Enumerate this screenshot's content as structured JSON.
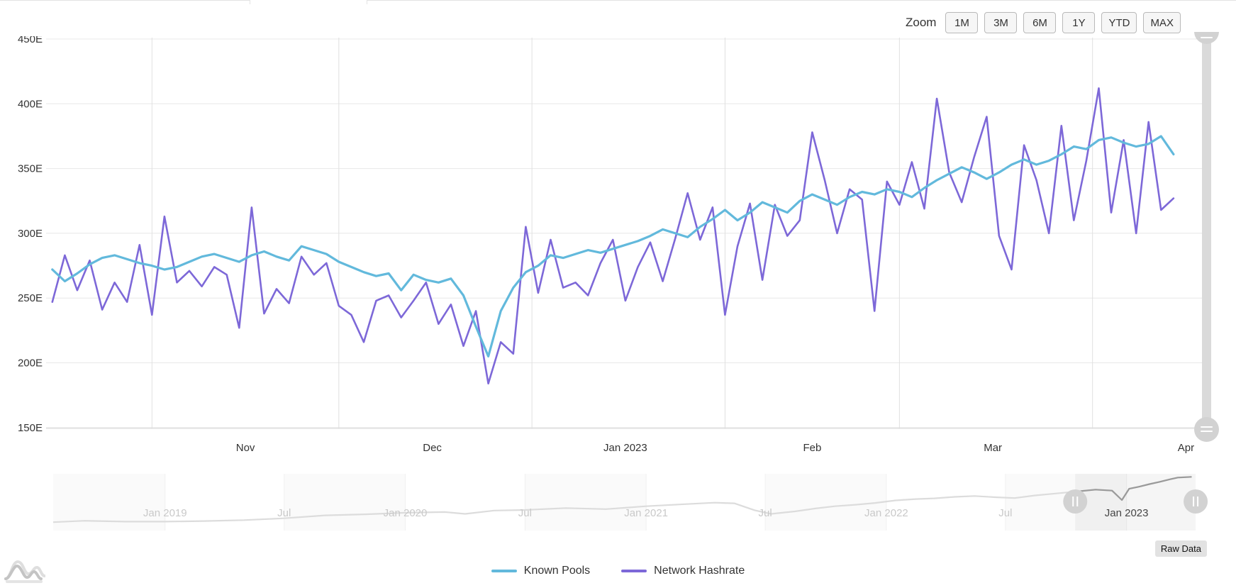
{
  "zoom_bar": {
    "label": "Zoom",
    "buttons": [
      "1M",
      "3M",
      "6M",
      "1Y",
      "YTD",
      "MAX"
    ]
  },
  "raw_data_button": {
    "label": "Raw Data"
  },
  "legend": {
    "items": [
      {
        "label": "Known Pools",
        "color": "#62b9dc"
      },
      {
        "label": "Network Hashrate",
        "color": "#7d68d8"
      }
    ]
  },
  "colors": {
    "known_pools": "#62b9dc",
    "network_hashrate": "#7d68d8",
    "grid_h": "#e8e8e8",
    "grid_v": "#e0e0e0",
    "axis_line": "#d4d4d4",
    "nav_line_dim": "#dcdcdc",
    "nav_line_active": "#9a9a9a",
    "nav_label_dim": "#c9c9c9",
    "nav_label_active": "#454545",
    "nav_band": "#fafafa",
    "nav_separator": "#f0f0f0",
    "nav_selection_fill": "rgba(120,120,120,0.07)",
    "control_gray": "#d2d2d2"
  },
  "chart_data": {
    "type": "line",
    "title": "",
    "xlabel": "",
    "ylabel": "",
    "ylim": [
      150,
      450
    ],
    "grid": true,
    "legend_position": "bottom",
    "y_axis": {
      "ticks": [
        {
          "value": 450,
          "label": "450E"
        },
        {
          "value": 400,
          "label": "400E"
        },
        {
          "value": 350,
          "label": "350E"
        },
        {
          "value": 300,
          "label": "300E"
        },
        {
          "value": 250,
          "label": "250E"
        },
        {
          "value": 200,
          "label": "200E"
        },
        {
          "value": 150,
          "label": "150E"
        }
      ]
    },
    "x_axis": {
      "ticks": [
        {
          "line_date": "2022-11-01",
          "label": "Nov",
          "label_date": "2022-11-16"
        },
        {
          "line_date": "2022-12-01",
          "label": "Dec",
          "label_date": "2022-12-16"
        },
        {
          "line_date": "2023-01-01",
          "label": "Jan 2023",
          "label_date": "2023-01-16"
        },
        {
          "line_date": "2023-02-01",
          "label": "Feb",
          "label_date": "2023-02-15"
        },
        {
          "line_date": "2023-03-01",
          "label": "Mar",
          "label_date": "2023-03-16"
        },
        {
          "line_date": "2023-04-01",
          "label": "Apr",
          "label_date": "2023-04-16"
        }
      ]
    },
    "x": [
      "2022-10-16",
      "2022-10-18",
      "2022-10-20",
      "2022-10-22",
      "2022-10-24",
      "2022-10-26",
      "2022-10-28",
      "2022-10-30",
      "2022-11-01",
      "2022-11-03",
      "2022-11-05",
      "2022-11-07",
      "2022-11-09",
      "2022-11-11",
      "2022-11-13",
      "2022-11-15",
      "2022-11-17",
      "2022-11-19",
      "2022-11-21",
      "2022-11-23",
      "2022-11-25",
      "2022-11-27",
      "2022-11-29",
      "2022-12-01",
      "2022-12-03",
      "2022-12-05",
      "2022-12-07",
      "2022-12-09",
      "2022-12-11",
      "2022-12-13",
      "2022-12-15",
      "2022-12-17",
      "2022-12-19",
      "2022-12-21",
      "2022-12-23",
      "2022-12-25",
      "2022-12-27",
      "2022-12-29",
      "2022-12-31",
      "2023-01-02",
      "2023-01-04",
      "2023-01-06",
      "2023-01-08",
      "2023-01-10",
      "2023-01-12",
      "2023-01-14",
      "2023-01-16",
      "2023-01-18",
      "2023-01-20",
      "2023-01-22",
      "2023-01-24",
      "2023-01-26",
      "2023-01-28",
      "2023-01-30",
      "2023-02-01",
      "2023-02-03",
      "2023-02-05",
      "2023-02-07",
      "2023-02-09",
      "2023-02-11",
      "2023-02-13",
      "2023-02-15",
      "2023-02-17",
      "2023-02-19",
      "2023-02-21",
      "2023-02-23",
      "2023-02-25",
      "2023-02-27",
      "2023-03-01",
      "2023-03-03",
      "2023-03-05",
      "2023-03-07",
      "2023-03-09",
      "2023-03-11",
      "2023-03-13",
      "2023-03-15",
      "2023-03-17",
      "2023-03-19",
      "2023-03-21",
      "2023-03-23",
      "2023-03-25",
      "2023-03-27",
      "2023-03-29",
      "2023-03-31",
      "2023-04-02",
      "2023-04-04",
      "2023-04-06",
      "2023-04-08",
      "2023-04-10",
      "2023-04-12",
      "2023-04-14"
    ],
    "series": [
      {
        "name": "Known Pools",
        "unit": "EH/s",
        "values": [
          272,
          263,
          269,
          276,
          281,
          283,
          280,
          277,
          275,
          272,
          274,
          278,
          282,
          284,
          281,
          278,
          283,
          286,
          282,
          279,
          290,
          287,
          284,
          278,
          274,
          270,
          267,
          269,
          256,
          268,
          264,
          262,
          265,
          252,
          228,
          205,
          240,
          258,
          270,
          275,
          283,
          281,
          284,
          287,
          285,
          288,
          291,
          294,
          298,
          303,
          300,
          297,
          305,
          311,
          318,
          310,
          316,
          324,
          320,
          316,
          325,
          330,
          326,
          322,
          328,
          332,
          330,
          334,
          332,
          328,
          335,
          341,
          346,
          351,
          347,
          342,
          347,
          353,
          357,
          353,
          356,
          361,
          367,
          365,
          372,
          374,
          370,
          367,
          369,
          375,
          361
        ]
      },
      {
        "name": "Network Hashrate",
        "unit": "EH/s",
        "values": [
          247,
          283,
          256,
          279,
          241,
          262,
          247,
          291,
          237,
          313,
          262,
          271,
          259,
          274,
          268,
          227,
          320,
          238,
          257,
          246,
          282,
          268,
          277,
          244,
          237,
          216,
          248,
          252,
          235,
          248,
          262,
          230,
          245,
          213,
          240,
          184,
          216,
          207,
          305,
          254,
          295,
          258,
          262,
          252,
          277,
          295,
          248,
          274,
          293,
          263,
          296,
          331,
          295,
          320,
          237,
          290,
          323,
          264,
          322,
          298,
          310,
          378,
          341,
          300,
          334,
          326,
          240,
          340,
          322,
          355,
          319,
          404,
          347,
          324,
          359,
          390,
          298,
          272,
          368,
          341,
          300,
          383,
          310,
          356,
          412,
          316,
          372,
          300,
          386,
          318,
          327
        ]
      }
    ]
  },
  "navigator": {
    "range": {
      "start": "2022-10-15",
      "end": "2023-04-16"
    },
    "ticks": [
      {
        "date": "2019-01-01",
        "label": "Jan 2019",
        "active": false
      },
      {
        "date": "2019-07-01",
        "label": "Jul",
        "active": false
      },
      {
        "date": "2020-01-01",
        "label": "Jan 2020",
        "active": false
      },
      {
        "date": "2020-07-01",
        "label": "Jul",
        "active": false
      },
      {
        "date": "2021-01-01",
        "label": "Jan 2021",
        "active": false
      },
      {
        "date": "2021-07-01",
        "label": "Jul",
        "active": false
      },
      {
        "date": "2022-01-01",
        "label": "Jan 2022",
        "active": false
      },
      {
        "date": "2022-07-01",
        "label": "Jul",
        "active": false
      },
      {
        "date": "2023-01-01",
        "label": "Jan 2023",
        "active": true
      }
    ],
    "series": {
      "name": "Network Hashrate (full history)",
      "unit": "EH/s",
      "x": [
        "2018-07-15",
        "2018-09-01",
        "2018-11-01",
        "2019-01-01",
        "2019-03-01",
        "2019-05-01",
        "2019-07-01",
        "2019-09-01",
        "2019-11-01",
        "2020-01-01",
        "2020-03-01",
        "2020-04-01",
        "2020-05-15",
        "2020-07-01",
        "2020-09-01",
        "2020-11-01",
        "2021-01-01",
        "2021-03-01",
        "2021-04-15",
        "2021-05-15",
        "2021-06-15",
        "2021-07-10",
        "2021-08-15",
        "2021-09-15",
        "2021-10-15",
        "2021-11-15",
        "2021-12-15",
        "2022-01-15",
        "2022-02-15",
        "2022-03-15",
        "2022-04-15",
        "2022-05-15",
        "2022-06-15",
        "2022-07-15",
        "2022-08-15",
        "2022-09-15",
        "2022-10-15",
        "2022-11-15",
        "2022-12-10",
        "2022-12-25",
        "2023-01-05",
        "2023-01-20",
        "2023-02-05",
        "2023-02-20",
        "2023-03-05",
        "2023-03-20",
        "2023-04-10"
      ],
      "values": [
        38,
        48,
        42,
        42,
        46,
        52,
        65,
        85,
        92,
        103,
        108,
        95,
        118,
        122,
        135,
        128,
        148,
        162,
        172,
        168,
        120,
        95,
        112,
        132,
        148,
        158,
        170,
        188,
        197,
        202,
        212,
        218,
        210,
        204,
        222,
        235,
        248,
        262,
        255,
        190,
        268,
        282,
        300,
        315,
        330,
        345,
        350
      ]
    }
  }
}
